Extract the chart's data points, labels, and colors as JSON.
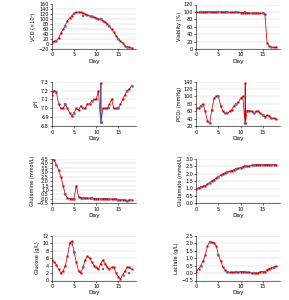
{
  "fig_width": 2.89,
  "fig_height": 3.0,
  "dpi": 100,
  "red": "#cc0000",
  "blue": "#4472c4",
  "subplots": {
    "VCD": {
      "ylabel": "VCD (×10⁵)",
      "xlabel": "Day",
      "ylim": [
        -20,
        160
      ],
      "yticks": [
        -20,
        0,
        20,
        40,
        60,
        80,
        100,
        120,
        140,
        160
      ],
      "xlim": [
        0,
        19
      ],
      "xticks": [
        0,
        5,
        10,
        15
      ],
      "red_x": [
        0.0,
        0.5,
        1.0,
        1.5,
        2.0,
        2.5,
        3.0,
        3.5,
        4.0,
        4.5,
        5.0,
        5.5,
        6.0,
        6.5,
        7.0,
        7.5,
        8.0,
        8.5,
        9.0,
        9.5,
        10.0,
        10.5,
        11.0,
        11.5,
        12.0,
        12.5,
        13.0,
        13.5,
        14.0,
        14.5,
        15.0,
        15.5,
        16.0,
        16.5,
        17.0,
        17.5,
        18.0
      ],
      "red_y": [
        10,
        12,
        15,
        25,
        45,
        60,
        75,
        95,
        105,
        115,
        125,
        128,
        130,
        128,
        125,
        122,
        118,
        115,
        112,
        108,
        105,
        102,
        100,
        95,
        90,
        82,
        72,
        60,
        48,
        35,
        22,
        12,
        5,
        -5,
        -10,
        -12,
        -15
      ],
      "blue_x": [
        1.0,
        3.0,
        5.0,
        7.0,
        9.0,
        11.0,
        13.0,
        15.0,
        17.0
      ],
      "blue_y": [
        15,
        75,
        122,
        115,
        110,
        102,
        72,
        22,
        -12
      ]
    },
    "Viability": {
      "ylabel": "Viablity (%)",
      "xlabel": "Day",
      "ylim": [
        0,
        120
      ],
      "yticks": [
        0,
        20,
        40,
        60,
        80,
        100,
        120
      ],
      "xlim": [
        0,
        19
      ],
      "xticks": [
        0,
        5,
        10,
        15
      ],
      "red_x": [
        0.0,
        0.5,
        1.0,
        1.5,
        2.0,
        2.5,
        3.0,
        3.5,
        4.0,
        4.5,
        5.0,
        5.5,
        6.0,
        6.5,
        7.0,
        7.5,
        8.0,
        8.5,
        9.0,
        9.5,
        10.0,
        10.5,
        11.0,
        11.5,
        12.0,
        12.5,
        13.0,
        13.5,
        14.0,
        14.5,
        15.0,
        15.5,
        16.0,
        16.5,
        17.0,
        17.5,
        18.0
      ],
      "red_y": [
        99,
        99,
        100,
        100,
        100,
        100,
        100,
        100,
        100,
        100,
        100,
        100,
        100,
        100,
        100,
        99,
        99,
        99,
        99,
        99,
        98,
        98,
        98,
        98,
        97,
        97,
        97,
        97,
        97,
        96,
        96,
        95,
        18,
        8,
        5,
        5,
        5
      ],
      "blue_x": [
        1.0,
        3.0,
        5.0,
        7.0,
        9.0,
        11.0,
        13.0,
        15.0,
        17.0
      ],
      "blue_y": [
        100,
        100,
        100,
        100,
        99,
        99,
        98,
        96,
        5
      ]
    },
    "pH": {
      "ylabel": "pH",
      "xlabel": "Day",
      "ylim": [
        6.8,
        7.3
      ],
      "yticks": [
        6.8,
        6.9,
        7.0,
        7.1,
        7.2,
        7.3
      ],
      "xlim": [
        0,
        19
      ],
      "xticks": [
        0,
        5,
        10,
        15
      ],
      "red_x": [
        0.0,
        0.5,
        1.0,
        1.5,
        2.0,
        2.5,
        3.0,
        3.5,
        4.0,
        4.5,
        5.0,
        5.5,
        6.0,
        6.5,
        7.0,
        7.5,
        8.0,
        8.5,
        9.0,
        9.5,
        10.0,
        10.5,
        11.0,
        11.05,
        11.1,
        11.5,
        12.0,
        12.5,
        13.0,
        13.5,
        14.0,
        14.5,
        15.0,
        15.5,
        16.0,
        16.5,
        17.0,
        17.5,
        18.0
      ],
      "red_y": [
        7.15,
        7.2,
        7.18,
        7.05,
        7.0,
        7.0,
        7.05,
        7.0,
        6.95,
        6.92,
        6.95,
        7.0,
        6.98,
        7.03,
        7.0,
        7.0,
        7.05,
        7.05,
        7.08,
        7.1,
        7.1,
        7.2,
        6.85,
        7.28,
        6.85,
        7.0,
        7.0,
        7.0,
        7.05,
        7.1,
        7.0,
        7.0,
        7.0,
        7.05,
        7.1,
        7.15,
        7.2,
        7.22,
        7.25
      ],
      "blue_x": [
        1.0,
        3.0,
        5.0,
        7.0,
        9.0,
        11.0,
        13.0,
        15.0,
        17.0,
        18.0
      ],
      "blue_y": [
        7.18,
        7.05,
        6.95,
        7.0,
        7.08,
        6.85,
        7.0,
        7.0,
        7.2,
        7.25
      ],
      "blue_line_x": [
        11.0,
        11.05
      ],
      "blue_line_y": [
        6.85,
        7.28
      ]
    },
    "PCO2": {
      "ylabel": "PCO₂ (mmHg)",
      "xlabel": "Day",
      "ylim": [
        20,
        140
      ],
      "yticks": [
        20,
        40,
        60,
        80,
        100,
        120,
        140
      ],
      "xlim": [
        0,
        19
      ],
      "xticks": [
        0,
        5,
        10,
        15
      ],
      "red_x": [
        0.0,
        0.5,
        1.0,
        1.5,
        2.0,
        2.5,
        3.0,
        3.5,
        4.0,
        4.5,
        5.0,
        5.5,
        6.0,
        6.5,
        7.0,
        7.5,
        8.0,
        8.5,
        9.0,
        9.5,
        10.0,
        10.5,
        11.0,
        11.05,
        11.1,
        11.5,
        12.0,
        12.5,
        13.0,
        13.5,
        14.0,
        14.5,
        15.0,
        15.5,
        16.0,
        16.5,
        17.0,
        17.5,
        18.0
      ],
      "red_y": [
        70,
        68,
        75,
        80,
        60,
        35,
        28,
        65,
        95,
        100,
        100,
        75,
        60,
        55,
        55,
        60,
        65,
        75,
        80,
        85,
        95,
        100,
        30,
        135,
        30,
        62,
        62,
        60,
        55,
        60,
        60,
        55,
        50,
        45,
        50,
        48,
        42,
        42,
        40
      ],
      "blue_x": [
        1.0,
        3.0,
        5.0,
        7.0,
        9.0,
        11.0,
        13.0,
        15.0,
        17.0
      ],
      "blue_y": [
        75,
        28,
        100,
        55,
        80,
        30,
        55,
        50,
        42
      ]
    },
    "Glutamine": {
      "ylabel": "Glutamine (mmol/L)",
      "xlabel": "Day",
      "ylim": [
        -0.5,
        4.5
      ],
      "yticks": [
        -0.5,
        0.0,
        0.5,
        1.0,
        1.5,
        2.0,
        2.5,
        3.0,
        3.5,
        4.0,
        4.5
      ],
      "xlim": [
        0,
        19
      ],
      "xticks": [
        0,
        5,
        10,
        15
      ],
      "red_x": [
        0.0,
        0.5,
        1.0,
        1.5,
        2.0,
        2.5,
        3.0,
        3.5,
        4.0,
        4.5,
        5.0,
        5.5,
        6.0,
        6.5,
        7.0,
        7.5,
        8.0,
        8.5,
        9.0,
        9.5,
        10.0,
        10.5,
        11.0,
        11.5,
        12.0,
        12.5,
        13.0,
        13.5,
        14.0,
        14.5,
        15.0,
        15.5,
        16.0,
        16.5,
        17.0,
        17.5,
        18.0
      ],
      "red_y": [
        4.5,
        4.3,
        3.8,
        3.2,
        2.5,
        1.5,
        0.5,
        0.1,
        0.05,
        0.05,
        0.05,
        1.5,
        0.2,
        0.15,
        0.1,
        0.1,
        0.1,
        0.1,
        0.1,
        0.05,
        0.0,
        0.05,
        0.05,
        0.05,
        0.05,
        0.0,
        0.0,
        0.0,
        0.0,
        0.0,
        -0.1,
        -0.1,
        -0.1,
        -0.1,
        -0.2,
        -0.1,
        -0.1
      ],
      "blue_x": [
        1.0,
        3.0,
        5.0,
        7.0,
        9.0,
        11.0,
        13.0,
        15.0,
        17.0
      ],
      "blue_y": [
        3.8,
        0.5,
        0.05,
        0.1,
        0.1,
        0.05,
        0.0,
        -0.1,
        -0.2
      ]
    },
    "Glutamate": {
      "ylabel": "Glutamate (mmol/L)",
      "xlabel": "Day",
      "ylim": [
        0.0,
        3.0
      ],
      "yticks": [
        0.0,
        0.5,
        1.0,
        1.5,
        2.0,
        2.5,
        3.0
      ],
      "xlim": [
        0,
        19
      ],
      "xticks": [
        0,
        5,
        10,
        15
      ],
      "red_x": [
        0.0,
        0.5,
        1.0,
        1.5,
        2.0,
        2.5,
        3.0,
        3.5,
        4.0,
        4.5,
        5.0,
        5.5,
        6.0,
        6.5,
        7.0,
        7.5,
        8.0,
        8.5,
        9.0,
        9.5,
        10.0,
        10.5,
        11.0,
        11.5,
        12.0,
        12.5,
        13.0,
        13.5,
        14.0,
        14.5,
        15.0,
        15.5,
        16.0,
        16.5,
        17.0,
        17.5,
        18.0
      ],
      "red_y": [
        1.0,
        1.05,
        1.1,
        1.15,
        1.2,
        1.3,
        1.4,
        1.5,
        1.6,
        1.7,
        1.8,
        1.9,
        2.0,
        2.05,
        2.1,
        2.15,
        2.2,
        2.25,
        2.3,
        2.35,
        2.4,
        2.45,
        2.5,
        2.5,
        2.5,
        2.55,
        2.6,
        2.6,
        2.6,
        2.6,
        2.6,
        2.6,
        2.6,
        2.6,
        2.6,
        2.6,
        2.6
      ],
      "blue_x": [
        1.0,
        3.0,
        5.0,
        7.0,
        9.0,
        11.0,
        13.0,
        15.0,
        17.0
      ],
      "blue_y": [
        1.1,
        1.4,
        1.8,
        2.1,
        2.3,
        2.5,
        2.6,
        2.6,
        2.6
      ]
    },
    "Glucose": {
      "ylabel": "Glucose (g/L)",
      "xlabel": "Day",
      "ylim": [
        0,
        12
      ],
      "yticks": [
        0,
        2,
        4,
        6,
        8,
        10,
        12
      ],
      "xlim": [
        0,
        19
      ],
      "xticks": [
        0,
        5,
        10,
        15
      ],
      "red_x": [
        0.0,
        0.5,
        1.0,
        1.5,
        2.0,
        2.5,
        3.0,
        3.5,
        4.0,
        4.5,
        5.0,
        5.5,
        6.0,
        6.5,
        7.0,
        7.5,
        8.0,
        8.5,
        9.0,
        9.5,
        10.0,
        10.5,
        11.0,
        11.5,
        12.0,
        12.5,
        13.0,
        13.5,
        14.0,
        14.5,
        15.0,
        15.5,
        16.0,
        16.5,
        17.0,
        17.5,
        18.0
      ],
      "red_y": [
        5.5,
        5.0,
        4.2,
        3.0,
        2.0,
        2.5,
        4.0,
        6.5,
        10.0,
        10.5,
        7.5,
        5.0,
        2.5,
        2.0,
        3.5,
        5.5,
        6.5,
        6.0,
        5.0,
        4.0,
        3.5,
        3.0,
        4.5,
        5.5,
        4.5,
        3.5,
        3.0,
        3.5,
        3.5,
        2.0,
        1.0,
        0.5,
        1.5,
        2.5,
        3.5,
        3.5,
        3.0
      ],
      "blue_x": [
        5.0,
        7.0,
        11.5,
        16.0,
        17.5
      ],
      "blue_y": [
        7.5,
        3.5,
        3.0,
        1.5,
        2.0
      ]
    },
    "Lactate": {
      "ylabel": "Lactate (g/L)",
      "xlabel": "Day",
      "ylim": [
        -0.5,
        2.5
      ],
      "yticks": [
        -0.5,
        0.0,
        0.5,
        1.0,
        1.5,
        2.0,
        2.5
      ],
      "xlim": [
        0,
        19
      ],
      "xticks": [
        0,
        5,
        10,
        15
      ],
      "red_x": [
        0.0,
        0.5,
        1.0,
        1.5,
        2.0,
        2.5,
        3.0,
        3.5,
        4.0,
        4.5,
        5.0,
        5.5,
        6.0,
        6.5,
        7.0,
        7.5,
        8.0,
        8.5,
        9.0,
        9.5,
        10.0,
        10.5,
        11.0,
        11.5,
        12.0,
        12.5,
        13.0,
        13.5,
        14.0,
        14.5,
        15.0,
        15.5,
        16.0,
        16.5,
        17.0,
        17.5,
        18.0
      ],
      "red_y": [
        0.1,
        0.3,
        0.5,
        0.8,
        1.2,
        1.8,
        2.1,
        2.05,
        2.0,
        1.8,
        1.2,
        0.8,
        0.4,
        0.2,
        0.1,
        0.05,
        0.05,
        0.05,
        0.05,
        0.05,
        0.1,
        0.1,
        0.05,
        0.05,
        0.05,
        0.0,
        0.0,
        0.0,
        0.0,
        0.1,
        0.1,
        0.1,
        0.2,
        0.3,
        0.35,
        0.4,
        0.45
      ],
      "blue_x": [
        1.0,
        3.0,
        5.0,
        7.0,
        9.0,
        11.0,
        13.0,
        17.5
      ],
      "blue_y": [
        0.5,
        2.1,
        1.2,
        0.1,
        0.05,
        0.05,
        0.0,
        0.35
      ]
    }
  }
}
